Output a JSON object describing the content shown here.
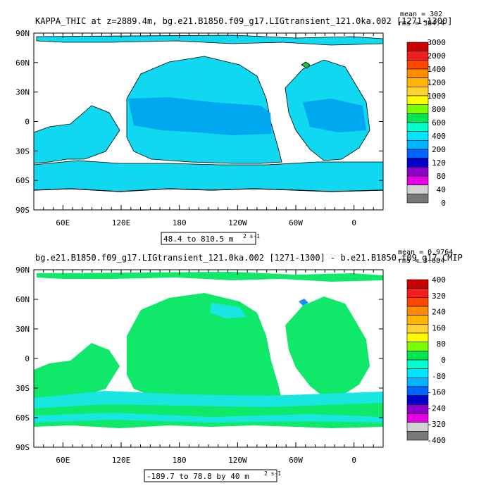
{
  "chart_data": [
    {
      "type": "heatmap",
      "title": "KAPPA_THIC at z=2889.4m, bg.e21.B1850.f09_g17.LIGtransient_121.0ka.002 [1271-1300]",
      "stats": {
        "mean": "mean = 302",
        "rms": "rms = 304.4"
      },
      "range_label": "48.4 to 810.5 m",
      "units": "2 s-1",
      "xticks": [
        "60E",
        "120E",
        "180",
        "120W",
        "60W",
        "0"
      ],
      "yticks": [
        "90N",
        "60N",
        "30N",
        "0",
        "30S",
        "60S",
        "90S"
      ],
      "colorbar": {
        "labels": [
          "3000",
          "2000",
          "1400",
          "1200",
          "1000",
          "800",
          "600",
          "400",
          "200",
          "120",
          "80",
          "40",
          "0"
        ],
        "colors": [
          "#c80000",
          "#f01e1e",
          "#ff4600",
          "#ff8c00",
          "#ffb400",
          "#ffd232",
          "#ffff00",
          "#78ff00",
          "#00e650",
          "#00ffcc",
          "#00e6ff",
          "#00b4ff",
          "#0064ff",
          "#0000c8",
          "#8c00c8",
          "#e600e6",
          "#d2d2d2",
          "#787878"
        ]
      },
      "dominant_values": {
        "open_ocean": "200-400",
        "tropical_pacific_indian": "120-200"
      }
    },
    {
      "type": "heatmap",
      "title": "bg.e21.B1850.f09_g17.LIGtransient_121.0ka.002 [1271-1300] - b.e21.B1850.f09_g17.CMIP",
      "stats": {
        "mean": "mean = 0.9764",
        "rms": "rms = 3.684"
      },
      "range_label": "-189.7 to 78.8 by 40 m",
      "units": "2 s-1",
      "xticks": [
        "60E",
        "120E",
        "180",
        "120W",
        "60W",
        "0"
      ],
      "yticks": [
        "90N",
        "60N",
        "30N",
        "0",
        "30S",
        "60S",
        "90S"
      ],
      "colorbar": {
        "labels": [
          "400",
          "320",
          "240",
          "160",
          "80",
          "0",
          "-80",
          "-160",
          "-240",
          "-320",
          "-400"
        ],
        "colors": [
          "#c80000",
          "#f01e1e",
          "#ff4600",
          "#ff8c00",
          "#ffb400",
          "#ffd232",
          "#ffff00",
          "#78ff00",
          "#00e650",
          "#00ffcc",
          "#00e6ff",
          "#00b4ff",
          "#0064ff",
          "#0000c8",
          "#8c00c8",
          "#e600e6",
          "#d2d2d2",
          "#787878"
        ]
      },
      "dominant_values": {
        "most_ocean": "0 to 40",
        "southern_ocean_bands": "-40 to 0"
      }
    }
  ]
}
